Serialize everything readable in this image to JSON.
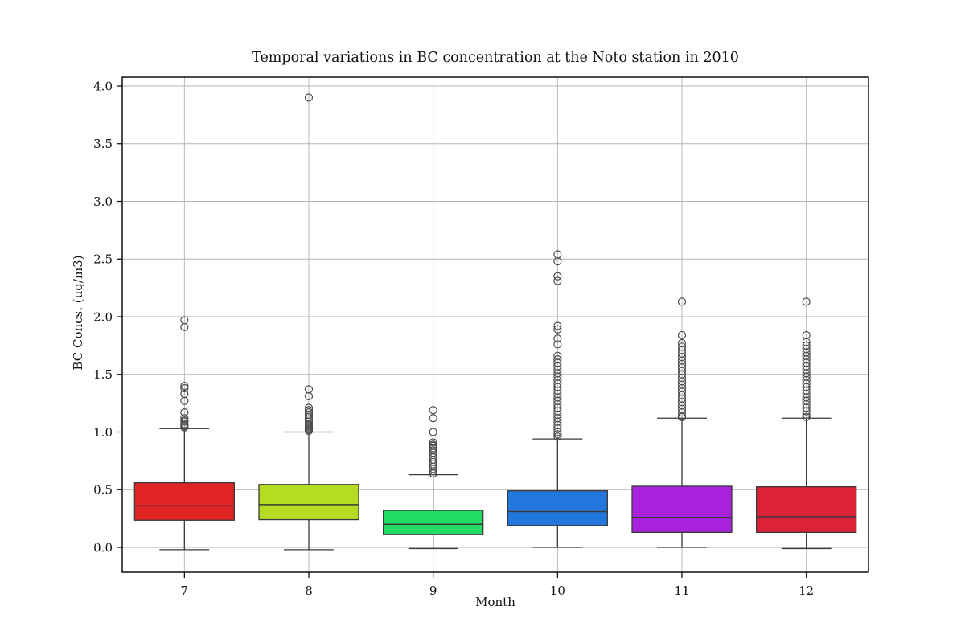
{
  "chart_data": {
    "type": "boxplot",
    "title": "Temporal variations in BC concentration at the Noto station in 2010",
    "xlabel": "Month",
    "ylabel": "BC Concs. (ug/m3)",
    "ylim": [
      -0.22,
      4.08
    ],
    "yticks": [
      0.0,
      0.5,
      1.0,
      1.5,
      2.0,
      2.5,
      3.0,
      3.5,
      4.0
    ],
    "ytick_labels": [
      "0.0",
      "0.5",
      "1.0",
      "1.5",
      "2.0",
      "2.5",
      "3.0",
      "3.5",
      "4.0"
    ],
    "categories": [
      "7",
      "8",
      "9",
      "10",
      "11",
      "12"
    ],
    "grid": true,
    "legend": "none",
    "colors": {
      "grid": "#b3b3b3",
      "box_edge": "#3a3a3a",
      "whisker": "#3a3a3a",
      "outlier_ring": "#4d4d4d",
      "axis": "#000000"
    },
    "series": [
      {
        "month": "7",
        "fill": "#e02424",
        "whisker_low": -0.02,
        "q1": 0.235,
        "median": 0.36,
        "q3": 0.56,
        "whisker_high": 1.03,
        "outliers": [
          1.97,
          1.91,
          1.4,
          1.38,
          1.33,
          1.27,
          1.17,
          1.12,
          1.1,
          1.09,
          1.07,
          1.06,
          1.05,
          1.04
        ]
      },
      {
        "month": "8",
        "fill": "#b5dc22",
        "whisker_low": -0.02,
        "q1": 0.24,
        "median": 0.37,
        "q3": 0.545,
        "whisker_high": 1.0,
        "outliers": [
          3.9,
          1.37,
          1.31,
          1.21,
          1.19,
          1.17,
          1.15,
          1.13,
          1.11,
          1.09,
          1.07,
          1.06,
          1.05,
          1.04,
          1.03,
          1.02,
          1.01
        ]
      },
      {
        "month": "9",
        "fill": "#22dc64",
        "whisker_low": -0.01,
        "q1": 0.11,
        "median": 0.2,
        "q3": 0.32,
        "whisker_high": 0.63,
        "outliers": [
          1.19,
          1.12,
          1.0,
          0.91,
          0.89,
          0.88,
          0.86,
          0.84,
          0.82,
          0.8,
          0.78,
          0.76,
          0.74,
          0.72,
          0.7,
          0.68,
          0.66,
          0.64
        ]
      },
      {
        "month": "10",
        "fill": "#2277dc",
        "whisker_low": 0.0,
        "q1": 0.19,
        "median": 0.31,
        "q3": 0.49,
        "whisker_high": 0.94,
        "outliers": [
          2.54,
          2.48,
          2.35,
          2.31,
          1.92,
          1.89,
          1.81,
          1.76,
          1.66,
          1.63,
          1.6,
          1.57,
          1.54,
          1.51,
          1.48,
          1.45,
          1.42,
          1.39,
          1.36,
          1.33,
          1.3,
          1.27,
          1.24,
          1.21,
          1.18,
          1.15,
          1.12,
          1.09,
          1.06,
          1.03,
          1.0,
          0.98,
          0.96
        ]
      },
      {
        "month": "11",
        "fill": "#a822dc",
        "whisker_low": 0.0,
        "q1": 0.13,
        "median": 0.26,
        "q3": 0.53,
        "whisker_high": 1.12,
        "outliers": [
          2.13,
          1.84,
          1.77,
          1.74,
          1.71,
          1.68,
          1.65,
          1.62,
          1.59,
          1.56,
          1.53,
          1.5,
          1.47,
          1.44,
          1.41,
          1.38,
          1.35,
          1.32,
          1.29,
          1.26,
          1.23,
          1.2,
          1.17,
          1.14,
          1.13
        ]
      },
      {
        "month": "12",
        "fill": "#dc2236",
        "whisker_low": -0.01,
        "q1": 0.13,
        "median": 0.265,
        "q3": 0.525,
        "whisker_high": 1.12,
        "outliers": [
          2.13,
          1.84,
          1.78,
          1.75,
          1.72,
          1.69,
          1.66,
          1.63,
          1.6,
          1.57,
          1.54,
          1.51,
          1.48,
          1.45,
          1.42,
          1.39,
          1.36,
          1.33,
          1.3,
          1.27,
          1.24,
          1.21,
          1.18,
          1.15,
          1.13
        ]
      }
    ]
  }
}
